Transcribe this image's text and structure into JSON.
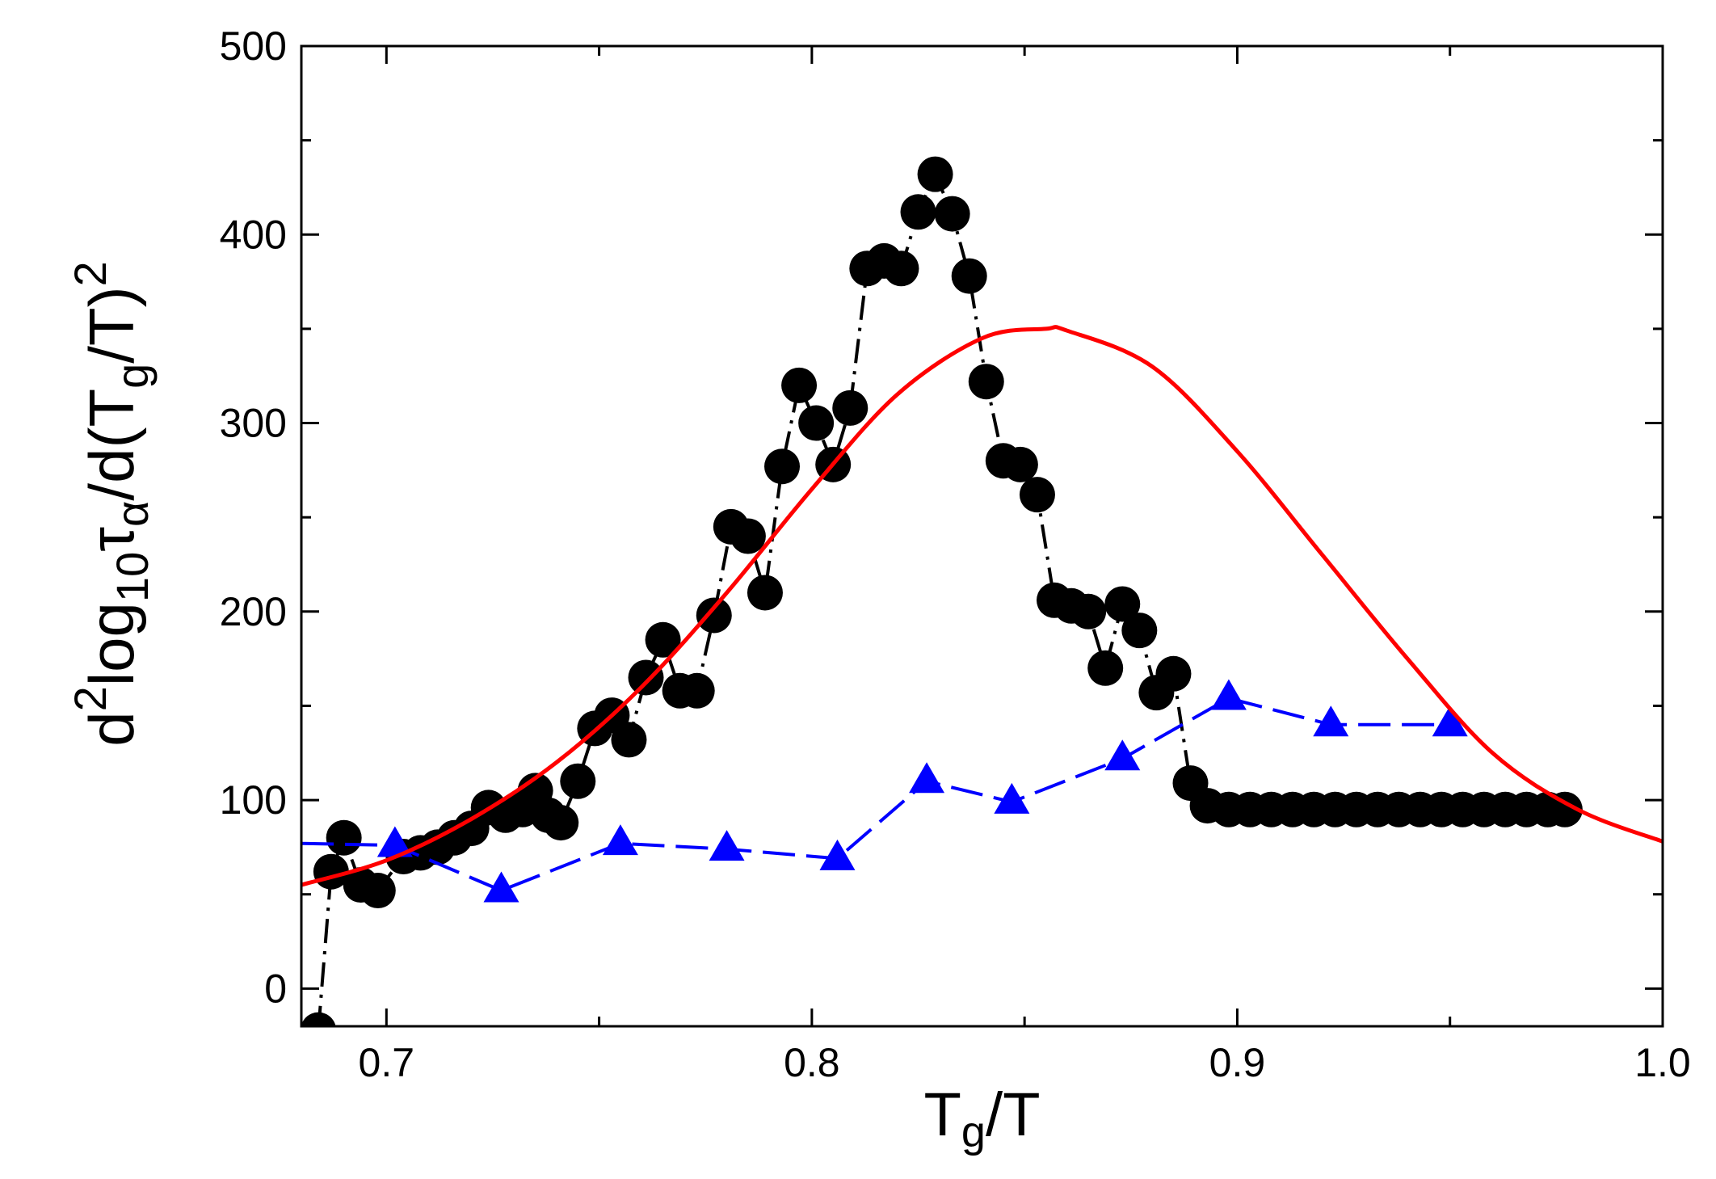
{
  "chart_data": {
    "type": "line",
    "title": "",
    "xlabel": {
      "main": "T",
      "sub": "g",
      "rest": "/T"
    },
    "ylabel": {
      "parts": [
        {
          "t": "d",
          "s": "n"
        },
        {
          "t": "2",
          "s": "sup"
        },
        {
          "t": "log",
          "s": "n"
        },
        {
          "t": "10",
          "s": "sub"
        },
        {
          "t": "τ",
          "s": "n"
        },
        {
          "t": "α",
          "s": "sub"
        },
        {
          "t": "/d(T",
          "s": "n"
        },
        {
          "t": "g",
          "s": "sub"
        },
        {
          "t": "/T)",
          "s": "n"
        },
        {
          "t": "2",
          "s": "sup"
        }
      ]
    },
    "xlim": [
      0.68,
      1.0
    ],
    "ylim": [
      -20,
      500
    ],
    "xticks": [
      0.7,
      0.8,
      0.9,
      1.0
    ],
    "xtick_labels": [
      "0.7",
      "0.8",
      "0.9",
      "1.0"
    ],
    "yticks": [
      0,
      100,
      200,
      300,
      400,
      500
    ],
    "ytick_labels": [
      "0",
      "100",
      "200",
      "300",
      "400",
      "500"
    ],
    "grid": false,
    "series": [
      {
        "name": "circles",
        "color": "#000000",
        "marker": "circle",
        "line": "dash-dot",
        "x": [
          0.684,
          0.687,
          0.69,
          0.694,
          0.698,
          0.704,
          0.708,
          0.712,
          0.716,
          0.72,
          0.724,
          0.728,
          0.732,
          0.735,
          0.738,
          0.741,
          0.745,
          0.749,
          0.753,
          0.757,
          0.761,
          0.765,
          0.769,
          0.773,
          0.777,
          0.781,
          0.785,
          0.789,
          0.793,
          0.797,
          0.801,
          0.805,
          0.809,
          0.813,
          0.817,
          0.821,
          0.825,
          0.829,
          0.833,
          0.837,
          0.841,
          0.845,
          0.849,
          0.853,
          0.857,
          0.861,
          0.865,
          0.869,
          0.873,
          0.877,
          0.881,
          0.885,
          0.889,
          0.893,
          0.898,
          0.903,
          0.908,
          0.913,
          0.918,
          0.923,
          0.928,
          0.933,
          0.938,
          0.943,
          0.948,
          0.953,
          0.958,
          0.963,
          0.968,
          0.973,
          0.977
        ],
        "values": [
          -22,
          62,
          80,
          55,
          52,
          70,
          72,
          75,
          80,
          85,
          96,
          92,
          95,
          105,
          92,
          88,
          110,
          138,
          145,
          132,
          165,
          185,
          158,
          158,
          198,
          245,
          240,
          210,
          277,
          320,
          300,
          278,
          308,
          382,
          386,
          382,
          412,
          432,
          411,
          378,
          322,
          280,
          278,
          262,
          206,
          203,
          200,
          170,
          204,
          190,
          157,
          167,
          109,
          97,
          95,
          95,
          95,
          95,
          95,
          95,
          95,
          95,
          95,
          95,
          95,
          95,
          95,
          95,
          95,
          95,
          95
        ]
      },
      {
        "name": "triangles",
        "color": "#0000ff",
        "marker": "triangle",
        "line": "dashed",
        "x": [
          0.68,
          0.702,
          0.727,
          0.755,
          0.78,
          0.806,
          0.827,
          0.847,
          0.873,
          0.898,
          0.922,
          0.95
        ],
        "values": [
          77,
          76,
          52,
          77,
          74,
          69,
          110,
          99,
          122,
          154,
          140,
          140
        ]
      },
      {
        "name": "fit",
        "color": "#ff0000",
        "marker": "none",
        "line": "solid",
        "x": [
          0.68,
          0.7,
          0.72,
          0.74,
          0.76,
          0.78,
          0.8,
          0.82,
          0.84,
          0.855,
          0.86,
          0.88,
          0.9,
          0.92,
          0.94,
          0.96,
          0.98,
          1.0
        ],
        "values": [
          55,
          68,
          90,
          120,
          160,
          210,
          265,
          315,
          345,
          350,
          349,
          330,
          285,
          230,
          175,
          125,
          95,
          78
        ]
      }
    ]
  }
}
